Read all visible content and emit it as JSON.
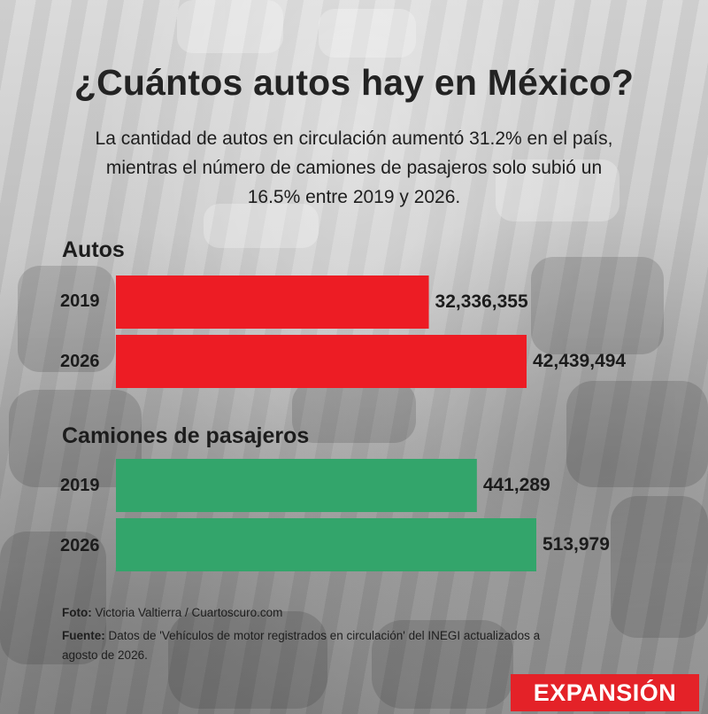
{
  "title": "¿Cuántos autos hay en México?",
  "subtitle": {
    "line1": "La cantidad de autos en circulación aumentó 31.2% en el país,",
    "line2": "mientras el número de camiones de pasajeros solo subió un",
    "line3": "16.5% entre 2019 y 2026."
  },
  "chart_data": [
    {
      "type": "bar",
      "orientation": "horizontal",
      "title": "Autos",
      "categories": [
        "2019",
        "2026"
      ],
      "values": [
        32336355,
        42439494
      ],
      "value_labels": [
        "32,336,355",
        "42,439,494"
      ],
      "color": "#ed1c24",
      "xlim": [
        0,
        42439494
      ]
    },
    {
      "type": "bar",
      "orientation": "horizontal",
      "title": "Camiones de pasajeros",
      "categories": [
        "2019",
        "2026"
      ],
      "values": [
        441289,
        513979
      ],
      "value_labels": [
        "441,289",
        "513,979"
      ],
      "color": "#33a56b",
      "xlim": [
        0,
        513979
      ]
    }
  ],
  "credits": {
    "photo_label": "Foto:",
    "photo_text": "Victoria Valtierra / Cuartoscuro.com",
    "source_label": "Fuente:",
    "source_line1": "Datos de 'Vehículos de motor registrados en circulación' del INEGI actualizados a",
    "source_line2": "agosto de 2026."
  },
  "brand": "EXPANSIÓN",
  "colors": {
    "autos": "#ed1c24",
    "camiones": "#33a56b",
    "brand": "#e42228"
  }
}
